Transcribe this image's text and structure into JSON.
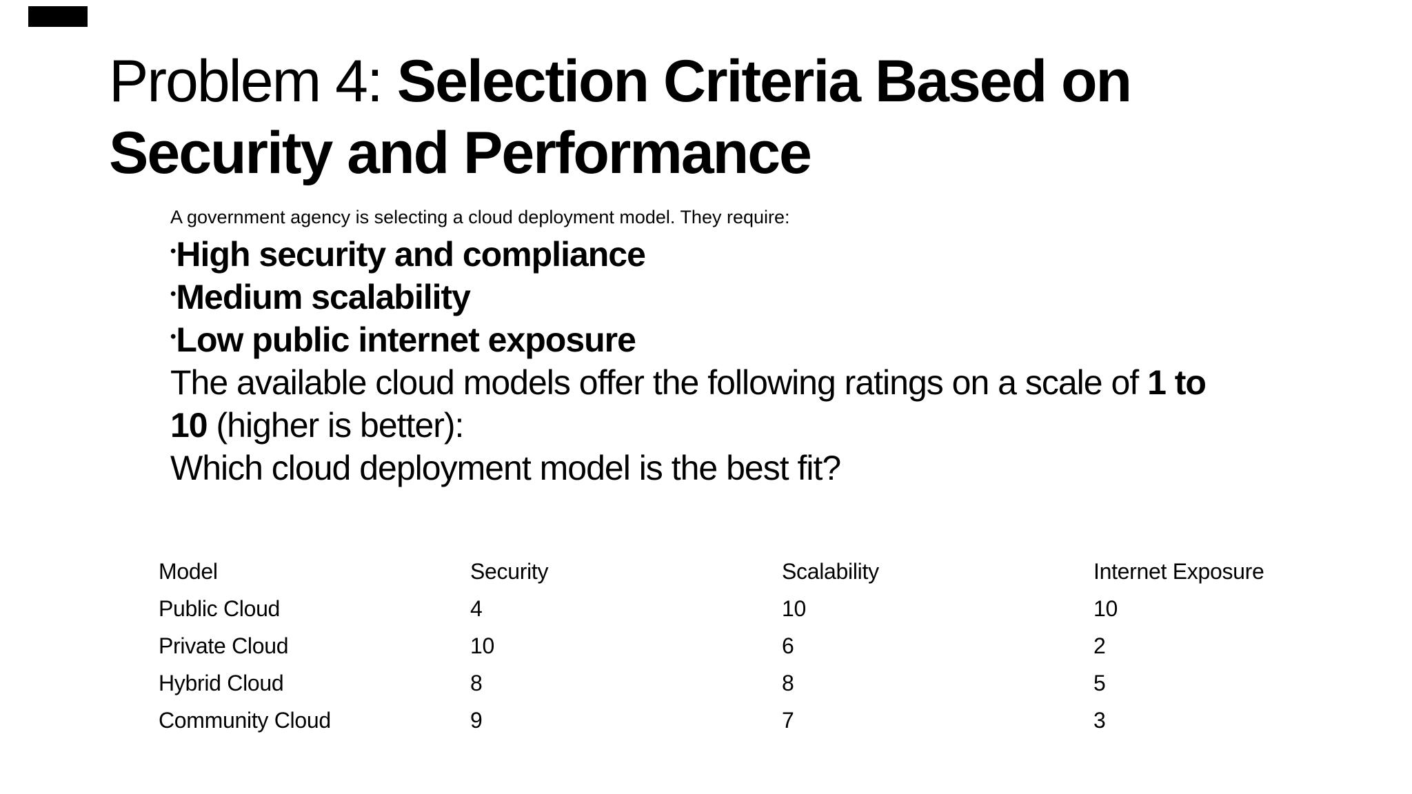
{
  "title": {
    "prefix": "Problem 4: ",
    "emphasis_lines": [
      "Selection Criteria Based on",
      "Security and Performance"
    ]
  },
  "intro": "A government agency is selecting a cloud deployment model. They require:",
  "bullet_glyph": "•",
  "bullets": [
    "High security and compliance",
    "Medium scalability",
    "Low public internet exposure"
  ],
  "ratings_paragraph": {
    "lines": [
      [
        {
          "t": "The available cloud models offer the following ratings on a scale of ",
          "b": false
        },
        {
          "t": "1 to",
          "b": true
        }
      ],
      [
        {
          "t": "10",
          "b": true
        },
        {
          "t": " (higher is better):",
          "b": false
        }
      ]
    ]
  },
  "question": "Which cloud deployment model is the best fit?",
  "table": {
    "headers": [
      "Model",
      "Security",
      "Scalability",
      "Internet Exposure"
    ],
    "rows": [
      [
        "Public Cloud",
        "4",
        "10",
        "10"
      ],
      [
        "Private Cloud",
        "10",
        "6",
        "2"
      ],
      [
        "Hybrid Cloud",
        "8",
        "8",
        "5"
      ],
      [
        "Community Cloud",
        "9",
        "7",
        "3"
      ]
    ]
  },
  "colors": {
    "background": "#ffffff",
    "text": "#000000",
    "corner_mark": "#000000"
  }
}
